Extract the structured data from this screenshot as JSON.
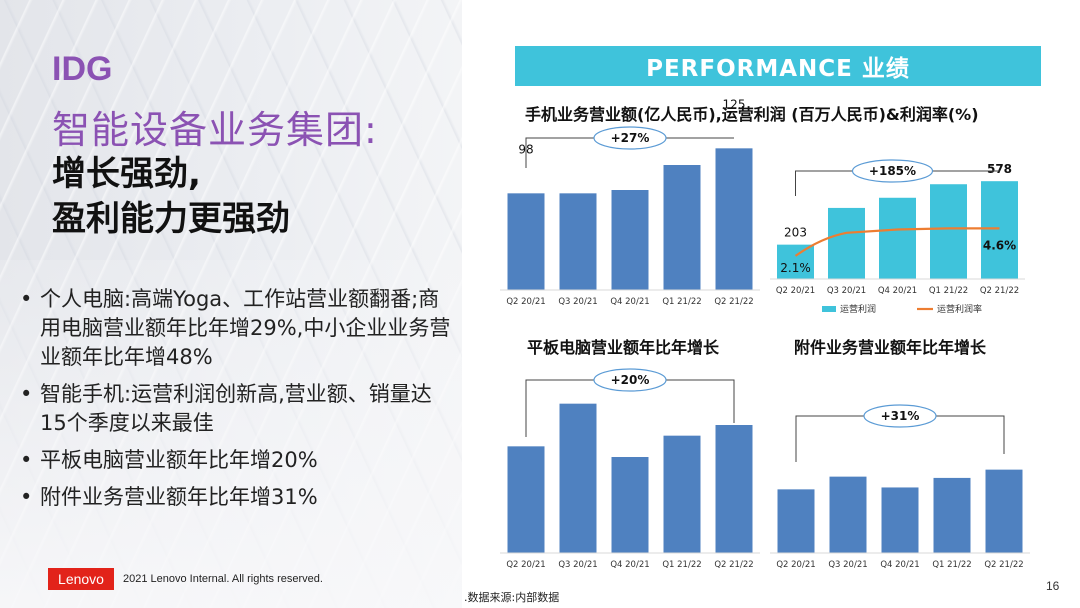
{
  "left": {
    "title_en": "IDG",
    "title_cn": "智能设备业务集团:",
    "subtitle_line1": "增长强劲,",
    "subtitle_line2": "盈利能力更强劲",
    "bullets": [
      "个人电脑:高端Yoga、工作站营业额翻番;商用电脑营业额年比年增29%,中小企业业务营业额年比年增48%",
      "智能手机:运营利润创新高,营业额、销量达15个季度以来最佳",
      "平板电脑营业额年比年增20%",
      "附件业务营业额年比年增31%"
    ]
  },
  "footer": {
    "logo": "Lenovo",
    "copyright": "2021 Lenovo Internal. All rights reserved.",
    "source": ".数据来源:内部数据",
    "page": "16"
  },
  "banner": "PERFORMANCE 业绩",
  "mobile_title": "手机业务营业额(亿人民币),运营利润 (百万人民币)&利润率(%)",
  "tablet_title": "平板电脑营业额年比年增长",
  "accessory_title": "附件业务营业额年比年增长",
  "colors": {
    "bar": "#4f81c0",
    "cyan_bar": "#3fc3db",
    "line": "#ed7d31",
    "banner": "#3fc3db",
    "accent": "#8b52b3"
  },
  "chart_data": [
    {
      "id": "mobile_revenue",
      "type": "bar",
      "categories": [
        "Q2 20/21",
        "Q3 20/21",
        "Q4 20/21",
        "Q1 21/22",
        "Q2 21/22"
      ],
      "values": [
        98,
        98,
        100,
        115,
        125
      ],
      "labels": [
        "98",
        "",
        "",
        "",
        "125"
      ],
      "growth": "+27%",
      "ylim": [
        40,
        130
      ]
    },
    {
      "id": "mobile_profit",
      "type": "bar",
      "categories": [
        "Q2 20/21",
        "Q3 20/21",
        "Q4 20/21",
        "Q1 21/22",
        "Q2 21/22"
      ],
      "series": [
        {
          "name": "运营利润",
          "type": "bar",
          "values": [
            203,
            420,
            480,
            560,
            578
          ]
        },
        {
          "name": "运营利润率",
          "type": "line",
          "values": [
            2.1,
            4.2,
            4.5,
            4.6,
            4.6
          ]
        }
      ],
      "bar_labels": [
        "203",
        "",
        "",
        "",
        "578"
      ],
      "line_labels": [
        "2.1%",
        "",
        "",
        "",
        "4.6%"
      ],
      "growth": "+185%",
      "ylim": [
        0,
        650
      ],
      "y2lim": [
        0,
        10
      ],
      "legend": "bottom"
    },
    {
      "id": "tablet_revenue",
      "type": "bar",
      "categories": [
        "Q2 20/21",
        "Q3 20/21",
        "Q4 20/21",
        "Q1 21/22",
        "Q2 21/22"
      ],
      "values": [
        100,
        140,
        90,
        110,
        120
      ],
      "growth": "+20%",
      "ylim": [
        0,
        150
      ]
    },
    {
      "id": "accessory_revenue",
      "type": "bar",
      "categories": [
        "Q2 20/21",
        "Q3 20/21",
        "Q4 20/21",
        "Q1 21/22",
        "Q2 21/22"
      ],
      "values": [
        100,
        120,
        103,
        118,
        131
      ],
      "growth": "+31%",
      "ylim": [
        0,
        220
      ]
    }
  ]
}
